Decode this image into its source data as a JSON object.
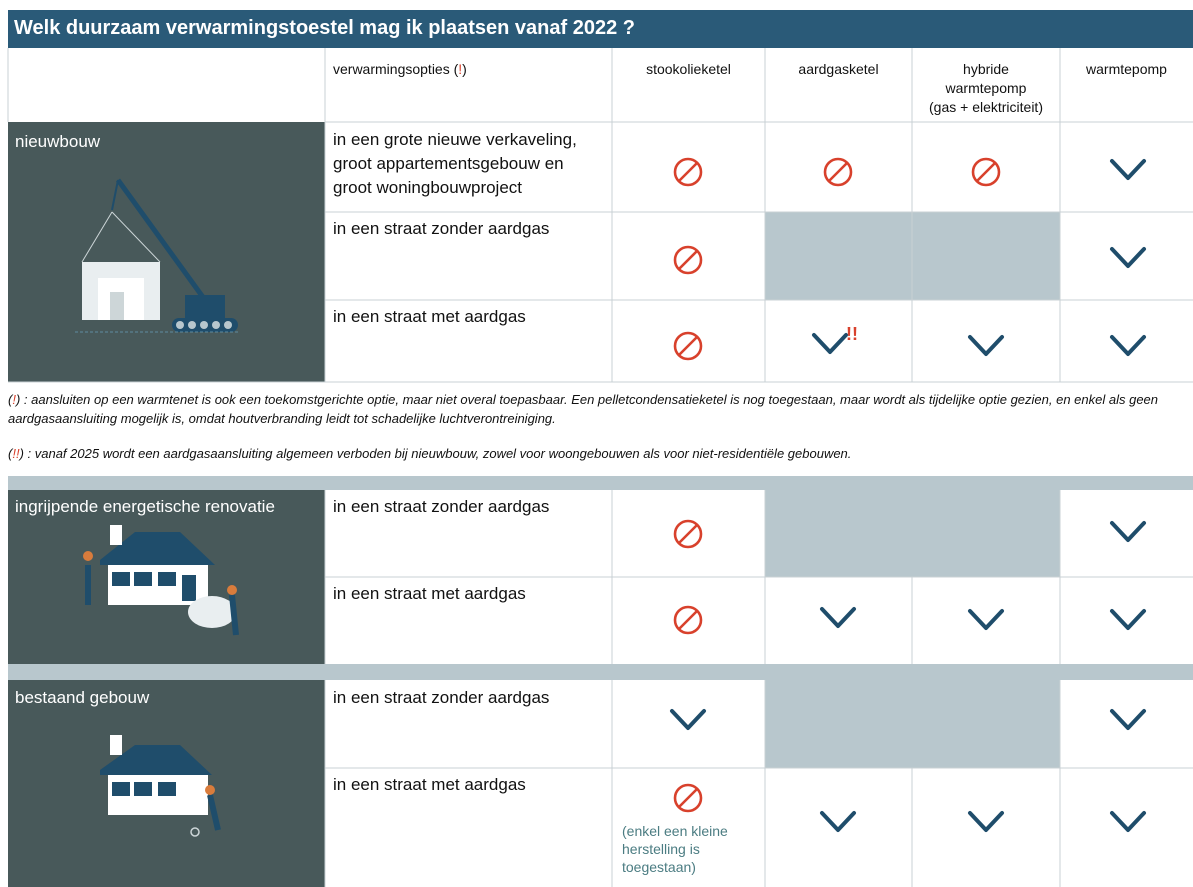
{
  "title": "Welk duurzaam verwarmingstoestel mag ik plaatsen vanaf 2022 ?",
  "header": {
    "options_prefix": "verwarmingsopties (",
    "options_mark": "!",
    "options_suffix": ")",
    "columns": [
      [
        "stookolieketel"
      ],
      [
        "aardgasketel"
      ],
      [
        "hybride",
        "warmtepomp",
        "(gas + elektriciteit)"
      ],
      [
        "warmtepomp"
      ]
    ]
  },
  "sections": [
    {
      "label": "nieuwbouw",
      "rows": [
        "in een grote nieuwe verkaveling, groot appartementsgebouw en groot woningbouwproject",
        "in een straat zonder aardgas",
        "in een straat met aardgas"
      ]
    },
    {
      "label": "ingrijpende energetische renovatie",
      "rows": [
        "in een straat zonder aardgas",
        "in een straat met aardgas"
      ]
    },
    {
      "label": "bestaand gebouw",
      "rows": [
        "in een straat zonder aardgas",
        "in een straat met aardgas"
      ]
    }
  ],
  "double_mark": "!!",
  "notes": [
    {
      "open": "(",
      "mark": "!",
      "text": ") : aansluiten op een warmtenet is ook een toekomstgerichte optie, maar niet overal toepasbaar. Een pelletcondensatieketel is nog toegestaan, maar wordt als tijdelijke optie gezien, en enkel als geen aardgasaansluiting mogelijk is, omdat houtverbranding leidt tot schadelijke luchtverontreiniging."
    },
    {
      "open": "(",
      "mark": "!!",
      "text": ") : vanaf 2025 wordt een aardgasaansluiting algemeen verboden bij nieuwbouw, zowel voor woongebouwen als voor niet-residentiële gebouwen."
    }
  ],
  "exception": "(enkel een kleine herstelling is toegestaan)"
}
